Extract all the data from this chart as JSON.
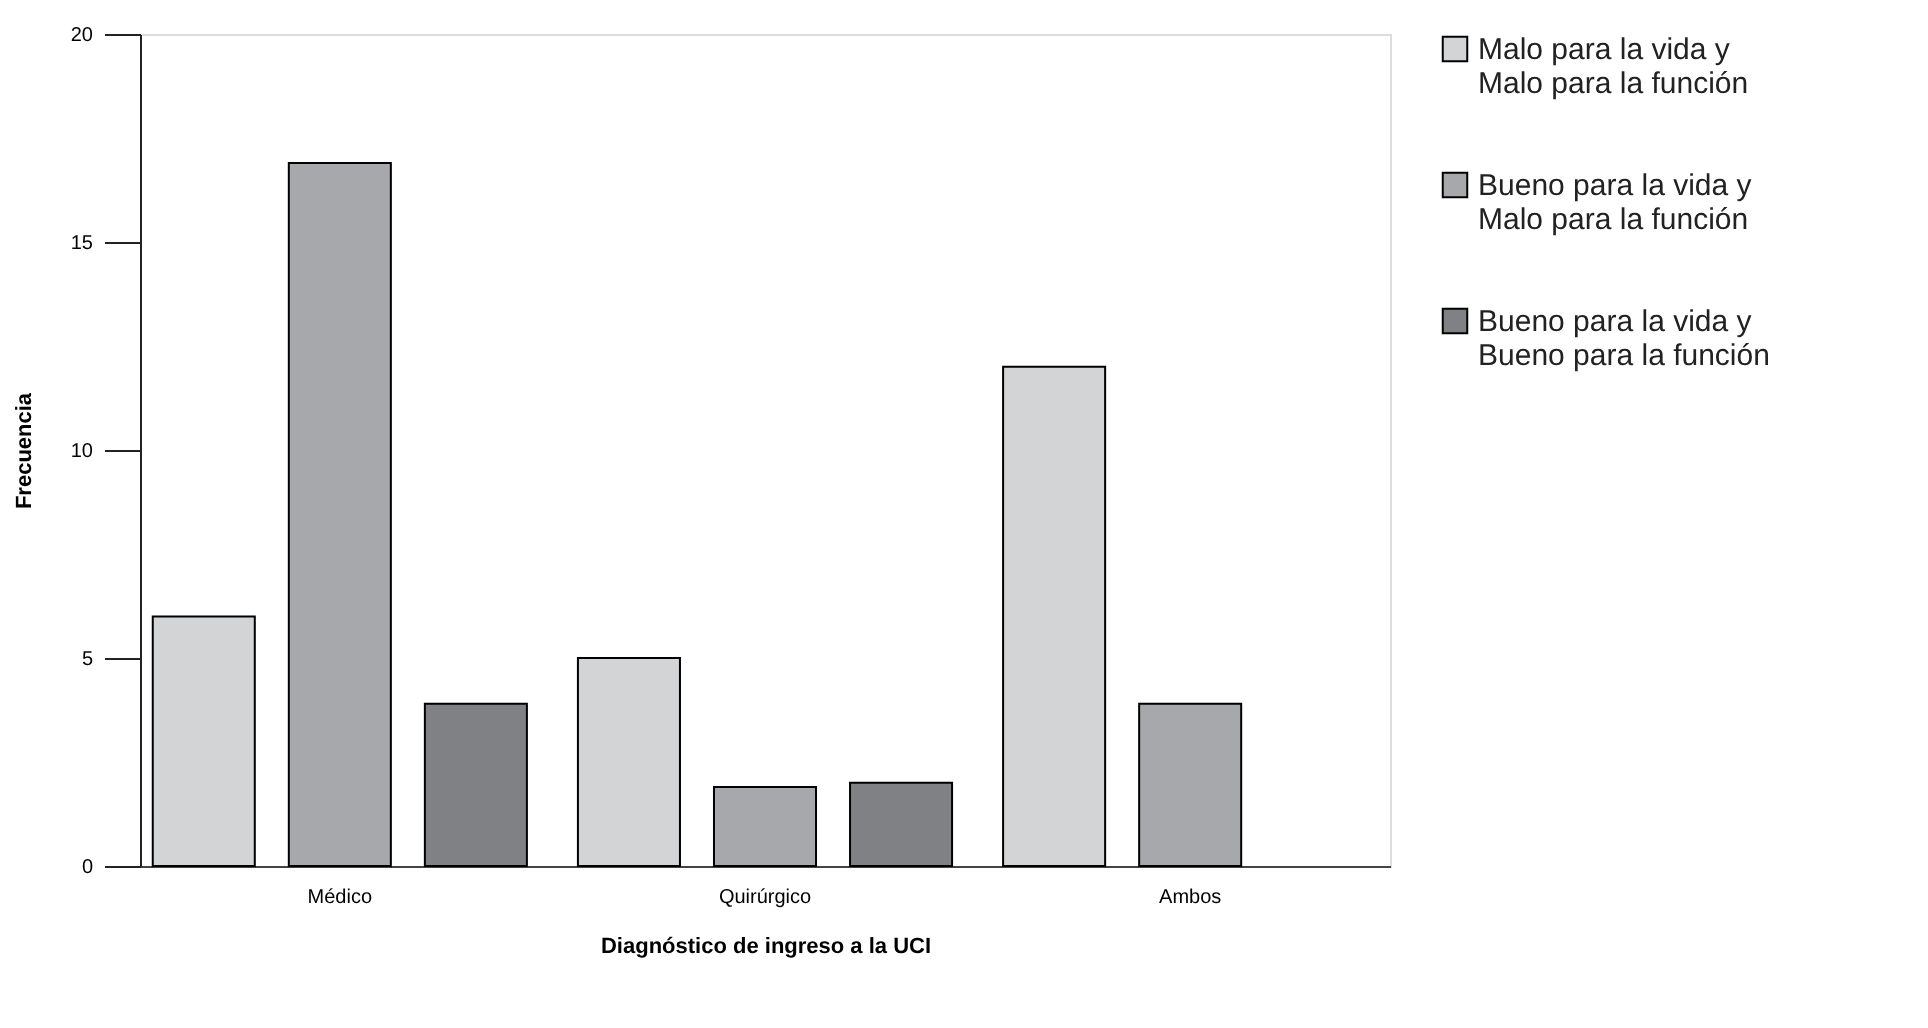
{
  "chart_data": {
    "type": "bar",
    "categories": [
      "Médico",
      "Quirúrgico",
      "Ambos"
    ],
    "xlabel": "Diagnóstico de ingreso a la UCI",
    "ylabel": "Frecuencia",
    "series": [
      {
        "name": "Malo para la vida y\nMalo para la función",
        "color": "#d3d4d6",
        "values": [
          6,
          5,
          12
        ]
      },
      {
        "name": "Bueno para la vida y\nMalo para la función",
        "color": "#a7a8ac",
        "values": [
          16.9,
          1.9,
          3.9
        ]
      },
      {
        "name": "Bueno para la vida y\nBueno para la función",
        "color": "#808185",
        "values": [
          3.9,
          2,
          null
        ]
      }
    ],
    "ylim": [
      0,
      20
    ],
    "yticks": [
      0,
      5,
      10,
      15,
      20
    ],
    "grid": false,
    "legend": "right"
  }
}
